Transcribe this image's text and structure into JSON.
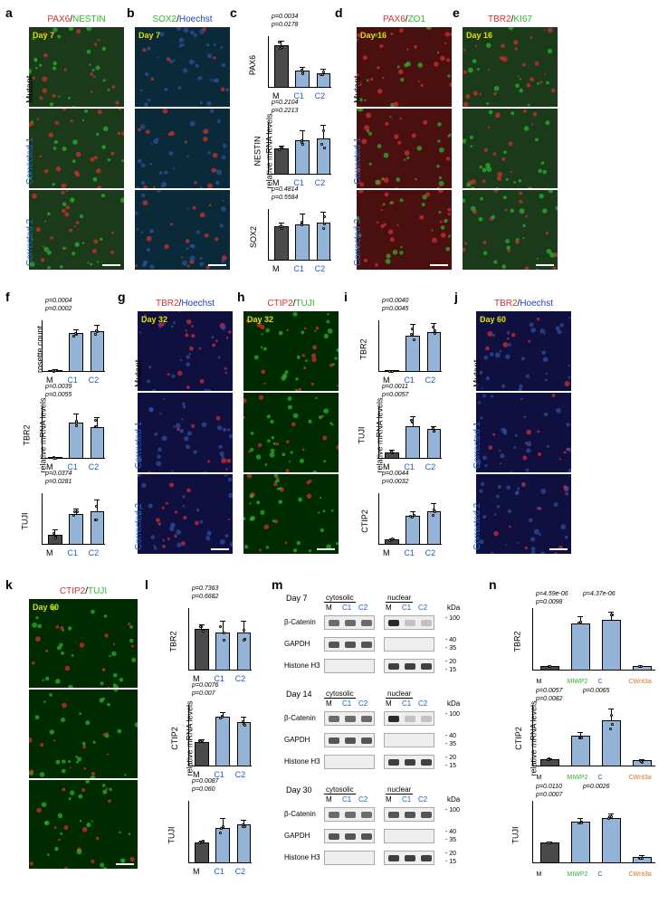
{
  "colors": {
    "mutant_bar": "#4a4a4a",
    "corrected_bar": "#93b4d6",
    "bar_border": "#000000",
    "red": "#d93030",
    "green": "#2eb82e",
    "blue": "#2040c0",
    "orange": "#e07020",
    "bg_dark": "#0a0a15"
  },
  "panel_labels": [
    "a",
    "b",
    "c",
    "d",
    "e",
    "f",
    "g",
    "h",
    "i",
    "j",
    "k",
    "l",
    "m",
    "n"
  ],
  "microscopy": {
    "a": {
      "header_parts": [
        {
          "t": "PAX6",
          "c": "#d93030"
        },
        {
          "t": "/",
          "c": "#000"
        },
        {
          "t": "NESTIN",
          "c": "#2eb82e"
        }
      ],
      "day": "Day 7",
      "rows": [
        "Mutant",
        "Corrected 1",
        "Corrected 2"
      ],
      "bg": "#1a3a1a"
    },
    "b": {
      "header_parts": [
        {
          "t": "SOX2",
          "c": "#2eb82e"
        },
        {
          "t": "/",
          "c": "#000"
        },
        {
          "t": "Hoechst",
          "c": "#2040c0"
        }
      ],
      "day": "Day 7",
      "bg": "#0a2a3a"
    },
    "d": {
      "header_parts": [
        {
          "t": "PAX6",
          "c": "#d93030"
        },
        {
          "t": "/",
          "c": "#000"
        },
        {
          "t": "ZO1",
          "c": "#2eb82e"
        }
      ],
      "day": "Day 16",
      "rows": [
        "Mutant",
        "Corrected 1",
        "Corrected 2"
      ],
      "bg": "#4a1010"
    },
    "e": {
      "header_parts": [
        {
          "t": "TBR2",
          "c": "#d93030"
        },
        {
          "t": "/",
          "c": "#000"
        },
        {
          "t": "KI67",
          "c": "#2eb82e"
        }
      ],
      "day": "Day 16",
      "bg": "#1a3a1a"
    },
    "g": {
      "header_parts": [
        {
          "t": "TBR2",
          "c": "#d93030"
        },
        {
          "t": "/",
          "c": "#000"
        },
        {
          "t": "Hoechst",
          "c": "#2040c0"
        }
      ],
      "day": "Day 32",
      "rows": [
        "Mutant",
        "Corrected 1",
        "Corrected 2"
      ],
      "bg": "#101040"
    },
    "h": {
      "header_parts": [
        {
          "t": "CTIP2",
          "c": "#d93030"
        },
        {
          "t": "/",
          "c": "#000"
        },
        {
          "t": "TUJI",
          "c": "#2eb82e"
        }
      ],
      "day": "Day 32",
      "bg": "#002a00"
    },
    "j": {
      "header_parts": [
        {
          "t": "TBR2",
          "c": "#d93030"
        },
        {
          "t": "/",
          "c": "#000"
        },
        {
          "t": "Hoechst",
          "c": "#2040c0"
        }
      ],
      "day": "Day 60",
      "rows": [
        "Mutant",
        "Corrected 1",
        "Corrected 2"
      ],
      "bg": "#101040"
    },
    "k": {
      "header_parts": [
        {
          "t": "CTIP2",
          "c": "#d93030"
        },
        {
          "t": "/",
          "c": "#000"
        },
        {
          "t": "TUJI",
          "c": "#2eb82e"
        }
      ],
      "day": "Day 60",
      "bg": "#002a00"
    }
  },
  "charts": {
    "common_ylabel": "relative mRNA levels",
    "c": [
      {
        "ylabel": "PAX6",
        "ymax": 1.2,
        "vals": [
          1.0,
          0.4,
          0.35
        ],
        "pvals": [
          "p=0.0178",
          "p=0.0034"
        ],
        "err": [
          0.1,
          0.08,
          0.1
        ]
      },
      {
        "ylabel": "NESTIN",
        "ymax": 2.0,
        "vals": [
          1.0,
          1.3,
          1.4
        ],
        "pvals": [
          "p=0.2213",
          "p=0.2104"
        ],
        "err": [
          0.1,
          0.4,
          0.5
        ]
      },
      {
        "ylabel": "SOX2",
        "ymax": 1.5,
        "vals": [
          1.0,
          1.05,
          1.1
        ],
        "pvals": [
          "p=0.5584",
          "p=0.4814"
        ],
        "err": [
          0.1,
          0.3,
          0.3
        ]
      }
    ],
    "f": [
      {
        "ylabel": "rosette count",
        "ymax": 120,
        "vals": [
          5,
          90,
          95
        ],
        "pvals": [
          "p=0.0002",
          "p=0.0004"
        ],
        "err": [
          3,
          10,
          15
        ]
      },
      {
        "ylabel": "TBR2",
        "ymax": 50,
        "vals": [
          1,
          35,
          30
        ],
        "pvals": [
          "p=0.0055",
          "p=0.0039"
        ],
        "err": [
          0.5,
          8,
          10
        ]
      },
      {
        "ylabel": "TUJI",
        "ymax": 5,
        "vals": [
          1,
          3,
          3.2
        ],
        "pvals": [
          "p=0.0281",
          "p=0.0374"
        ],
        "err": [
          0.5,
          0.5,
          1.2
        ]
      }
    ],
    "i": [
      {
        "ylabel": "TBR2",
        "ymax": 45,
        "vals": [
          1,
          32,
          35
        ],
        "pvals": [
          "p=0.0045",
          "p=0.0040"
        ],
        "err": [
          0.5,
          10,
          8
        ]
      },
      {
        "ylabel": "TUJI",
        "ymax": 8,
        "vals": [
          1,
          5,
          4.5
        ],
        "pvals": [
          "p=0.0057",
          "p=0.0011"
        ],
        "err": [
          0.3,
          1.5,
          0.5
        ]
      },
      {
        "ylabel": "CTIP2",
        "ymax": 10,
        "vals": [
          1,
          5.5,
          6.5
        ],
        "pvals": [
          "p=0.0032",
          "p=0.0044"
        ],
        "err": [
          0.3,
          1,
          1.5
        ]
      }
    ],
    "l": [
      {
        "ylabel": "TBR2",
        "ymax": 1.5,
        "vals": [
          1.0,
          0.9,
          0.9
        ],
        "pvals": [
          "p=0.6682",
          "p=0.7363"
        ],
        "err": [
          0.1,
          0.3,
          0.3
        ]
      },
      {
        "ylabel": "CTIP2",
        "ymax": 2.5,
        "vals": [
          1.0,
          2.0,
          1.8
        ],
        "pvals": [
          "p=0.007",
          "p=0.0076"
        ],
        "err": [
          0.1,
          0.2,
          0.2
        ]
      },
      {
        "ylabel": "TUJI",
        "ymax": 3,
        "vals": [
          1.0,
          1.7,
          1.9
        ],
        "pvals": [
          "p=0.060",
          "p=0.0087"
        ],
        "err": [
          0.1,
          0.5,
          0.2
        ]
      }
    ],
    "n": [
      {
        "ylabel": "TBR2",
        "ymax": 16,
        "cats": [
          "M",
          "MIWP2",
          "C",
          "CWnt3a"
        ],
        "vals": [
          1,
          12,
          13,
          1
        ],
        "pvals": [
          "p=0.0098",
          "p=4.59e-06",
          "p=4.37e-06"
        ],
        "err": [
          0.2,
          2,
          2,
          0.2
        ]
      },
      {
        "ylabel": "CTIP2",
        "ymax": 8,
        "cats": [
          "M",
          "MIWP2",
          "C",
          "CWnt3a"
        ],
        "vals": [
          1,
          4,
          6,
          0.8
        ],
        "pvals": [
          "p=0.0082",
          "p=0.0057",
          "p=0.0065"
        ],
        "err": [
          0.1,
          0.5,
          1.5,
          0.2
        ]
      },
      {
        "ylabel": "TUJI",
        "ymax": 3,
        "cats": [
          "M",
          "MIWP2",
          "C",
          "CWnt3a"
        ],
        "vals": [
          1,
          2,
          2.2,
          0.3
        ],
        "pvals": [
          "p=0.0007",
          "p=0.0110",
          "p=0.0026"
        ],
        "err": [
          0.05,
          0.2,
          0.2,
          0.1
        ]
      }
    ],
    "x_ticks_3": [
      "M",
      "C1",
      "C2"
    ],
    "x_colors_3": [
      "#000",
      "#2060c0",
      "#2060c0"
    ],
    "x_colors_4": [
      "#000",
      "#2eb82e",
      "#2060c0",
      "#e07020"
    ]
  },
  "blots": {
    "days": [
      "Day 7",
      "Day 14",
      "Day 30"
    ],
    "fractions": [
      "cytosolic",
      "nuclear"
    ],
    "lanes": [
      "M",
      "C1",
      "C2"
    ],
    "lane_colors": [
      "#000",
      "#2060c0",
      "#2060c0"
    ],
    "rows": [
      "β-Catenin",
      "GAPDH",
      "Histone H3"
    ],
    "kda": [
      "kDa",
      "100",
      "40",
      "35",
      "20",
      "15"
    ]
  }
}
